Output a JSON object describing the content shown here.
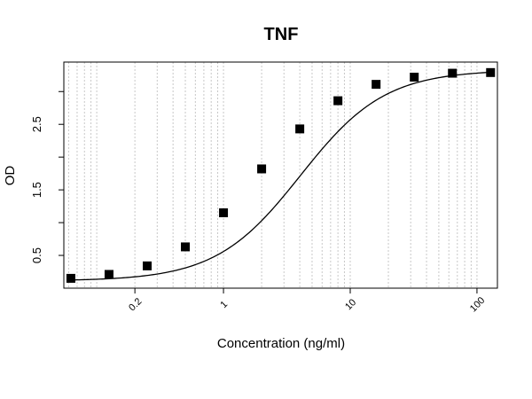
{
  "chart_data": {
    "type": "scatter",
    "title": "TNF",
    "xlabel": "Concentration (ng/ml)",
    "ylabel": "OD",
    "x_scale": "log",
    "xlim": [
      0.055,
      145
    ],
    "ylim": [
      0.0,
      3.45
    ],
    "grid": "vertical dotted at log minor ticks",
    "x_ticks": [
      {
        "value": 0.2,
        "label": "0.2"
      },
      {
        "value": 1,
        "label": "1"
      },
      {
        "value": 10,
        "label": "10"
      },
      {
        "value": 100,
        "label": "100"
      }
    ],
    "y_ticks": [
      {
        "value": 0.5,
        "label": "0.5"
      },
      {
        "value": 1.0,
        "label": ""
      },
      {
        "value": 1.5,
        "label": "1.5"
      },
      {
        "value": 2.0,
        "label": ""
      },
      {
        "value": 2.5,
        "label": "2.5"
      },
      {
        "value": 3.0,
        "label": ""
      }
    ],
    "series": [
      {
        "marker": "square",
        "color": "#000000",
        "x": [
          0.0625,
          0.125,
          0.25,
          0.5,
          1,
          2,
          4,
          8,
          16,
          32,
          64,
          128
        ],
        "y": [
          0.15,
          0.21,
          0.34,
          0.63,
          1.15,
          1.82,
          2.43,
          2.86,
          3.11,
          3.22,
          3.28,
          3.29
        ]
      }
    ],
    "fit_curve": {
      "type": "4PL",
      "bottom": 0.11,
      "top": 3.33,
      "ec50": 4.05,
      "hill": 1.3,
      "color": "#000000"
    }
  }
}
